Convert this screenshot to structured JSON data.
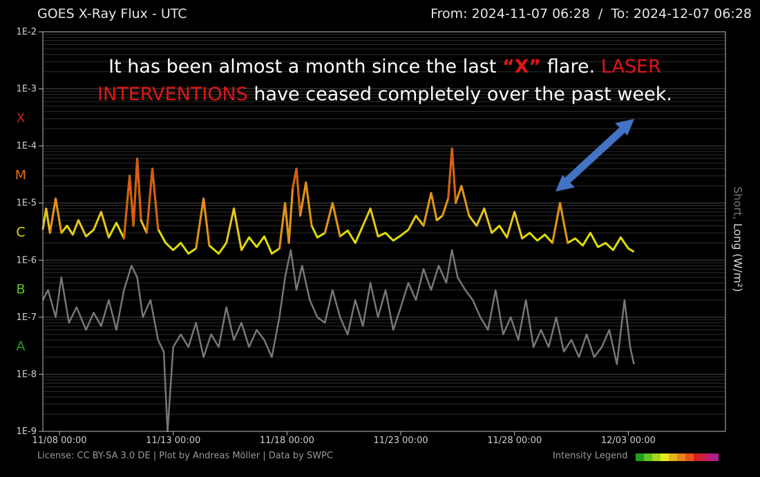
{
  "header": {
    "title": "GOES X-Ray Flux - UTC",
    "from_label": "From:",
    "from_value": "2024-11-07 06:28",
    "separator": "/",
    "to_label": "To:",
    "to_value": "2024-12-07 06:28"
  },
  "annotation": {
    "line1_a": "It has been almost a month since the last ",
    "line1_x": "“X”",
    "line1_b": " flare.  ",
    "line1_c": "LASER",
    "line2_a": "INTERVENTIONS",
    "line2_b": " have ceased completely over the past week."
  },
  "ylabel": {
    "short": "Short,",
    "long": "Long (W/m²)"
  },
  "footer": {
    "license": "License: CC BY-SA 3.0 DE | Plot by Andreas Möller | Data by SWPC",
    "legend_label": "Intensity Legend",
    "legend_colors": [
      "#1fa01f",
      "#5cc51f",
      "#a4d81e",
      "#e8e81c",
      "#e8b21c",
      "#e8821c",
      "#e8521c",
      "#d81e1e",
      "#c41e5a",
      "#b01e8a"
    ]
  },
  "colors": {
    "background": "#000000",
    "grid": "#3a3a3a",
    "frame": "#bdbdbd",
    "long_series_base": "#dede00",
    "short_series": "#777777",
    "annotation_red": "#e11515",
    "arrow": "#4472c4"
  },
  "chart_data": {
    "type": "line",
    "title": "GOES X-Ray Flux - UTC",
    "x_range": [
      "2024-11-07 06:28",
      "2024-12-07 06:28"
    ],
    "x_tick_labels": [
      "11/08 00:00",
      "11/13 00:00",
      "11/18 00:00",
      "11/23 00:00",
      "11/28 00:00",
      "12/03 00:00"
    ],
    "x_tick_dates": [
      "2024-11-08 00:00",
      "2024-11-13 00:00",
      "2024-11-18 00:00",
      "2024-11-23 00:00",
      "2024-11-28 00:00",
      "2024-12-03 00:00"
    ],
    "y_scale": "log",
    "ylim": [
      1e-09,
      0.01
    ],
    "y_tick_labels": [
      "1E-2",
      "1E-3",
      "1E-4",
      "1E-5",
      "1E-6",
      "1E-7",
      "1E-8",
      "1E-9"
    ],
    "y_tick_values": [
      0.01,
      0.001,
      0.0001,
      1e-05,
      1e-06,
      1e-07,
      1e-08,
      1e-09
    ],
    "ylabel": "Short, Long (W/m²)",
    "flare_classes": [
      {
        "label": "X",
        "color": "#c81e1e",
        "y": 0.000316
      },
      {
        "label": "M",
        "color": "#e07018",
        "y": 3.16e-05
      },
      {
        "label": "C",
        "color": "#dede00",
        "y": 3.16e-06
      },
      {
        "label": "B",
        "color": "#5cc51f",
        "y": 3.16e-07
      },
      {
        "label": "A",
        "color": "#1fa01f",
        "y": 3.16e-08
      }
    ],
    "grid": true,
    "series": [
      {
        "name": "Long",
        "color": "#dede00",
        "points": [
          [
            "2024-11-07 06:28",
            3.5e-06
          ],
          [
            "2024-11-07 10:00",
            8e-06
          ],
          [
            "2024-11-07 14:00",
            3e-06
          ],
          [
            "2024-11-07 20:00",
            1.2e-05
          ],
          [
            "2024-11-08 02:00",
            3e-06
          ],
          [
            "2024-11-08 08:00",
            4e-06
          ],
          [
            "2024-11-08 14:00",
            2.8e-06
          ],
          [
            "2024-11-08 20:00",
            5e-06
          ],
          [
            "2024-11-09 04:00",
            2.6e-06
          ],
          [
            "2024-11-09 12:00",
            3.4e-06
          ],
          [
            "2024-11-09 20:00",
            7e-06
          ],
          [
            "2024-11-10 04:00",
            2.5e-06
          ],
          [
            "2024-11-10 12:00",
            4.5e-06
          ],
          [
            "2024-11-10 20:00",
            2.4e-06
          ],
          [
            "2024-11-11 02:00",
            3e-05
          ],
          [
            "2024-11-11 06:00",
            4e-06
          ],
          [
            "2024-11-11 10:00",
            6e-05
          ],
          [
            "2024-11-11 14:00",
            5e-06
          ],
          [
            "2024-11-11 20:00",
            3e-06
          ],
          [
            "2024-11-12 02:00",
            4e-05
          ],
          [
            "2024-11-12 08:00",
            3.5e-06
          ],
          [
            "2024-11-12 16:00",
            2e-06
          ],
          [
            "2024-11-13 00:00",
            1.5e-06
          ],
          [
            "2024-11-13 08:00",
            2e-06
          ],
          [
            "2024-11-13 16:00",
            1.3e-06
          ],
          [
            "2024-11-14 00:00",
            1.6e-06
          ],
          [
            "2024-11-14 08:00",
            1.2e-05
          ],
          [
            "2024-11-14 14:00",
            1.8e-06
          ],
          [
            "2024-11-15 00:00",
            1.3e-06
          ],
          [
            "2024-11-15 08:00",
            2e-06
          ],
          [
            "2024-11-15 16:00",
            8e-06
          ],
          [
            "2024-11-16 00:00",
            1.5e-06
          ],
          [
            "2024-11-16 08:00",
            2.5e-06
          ],
          [
            "2024-11-16 16:00",
            1.7e-06
          ],
          [
            "2024-11-17 00:00",
            2.6e-06
          ],
          [
            "2024-11-17 08:00",
            1.3e-06
          ],
          [
            "2024-11-17 16:00",
            1.6e-06
          ],
          [
            "2024-11-17 22:00",
            1e-05
          ],
          [
            "2024-11-18 02:00",
            2e-06
          ],
          [
            "2024-11-18 06:00",
            1.8e-05
          ],
          [
            "2024-11-18 10:00",
            4e-05
          ],
          [
            "2024-11-18 14:00",
            6e-06
          ],
          [
            "2024-11-18 20:00",
            2.3e-05
          ],
          [
            "2024-11-19 02:00",
            4e-06
          ],
          [
            "2024-11-19 08:00",
            2.5e-06
          ],
          [
            "2024-11-19 16:00",
            3e-06
          ],
          [
            "2024-11-20 00:00",
            1e-05
          ],
          [
            "2024-11-20 08:00",
            2.6e-06
          ],
          [
            "2024-11-20 16:00",
            3.3e-06
          ],
          [
            "2024-11-21 00:00",
            2e-06
          ],
          [
            "2024-11-21 08:00",
            4e-06
          ],
          [
            "2024-11-21 16:00",
            8e-06
          ],
          [
            "2024-11-22 00:00",
            2.6e-06
          ],
          [
            "2024-11-22 08:00",
            3e-06
          ],
          [
            "2024-11-22 16:00",
            2.2e-06
          ],
          [
            "2024-11-23 00:00",
            2.7e-06
          ],
          [
            "2024-11-23 08:00",
            3.4e-06
          ],
          [
            "2024-11-23 16:00",
            6e-06
          ],
          [
            "2024-11-24 00:00",
            4e-06
          ],
          [
            "2024-11-24 08:00",
            1.5e-05
          ],
          [
            "2024-11-24 14:00",
            5e-06
          ],
          [
            "2024-11-24 20:00",
            6e-06
          ],
          [
            "2024-11-25 02:00",
            1.2e-05
          ],
          [
            "2024-11-25 06:00",
            9e-05
          ],
          [
            "2024-11-25 10:00",
            1e-05
          ],
          [
            "2024-11-25 16:00",
            2e-05
          ],
          [
            "2024-11-26 00:00",
            6e-06
          ],
          [
            "2024-11-26 08:00",
            4e-06
          ],
          [
            "2024-11-26 16:00",
            8e-06
          ],
          [
            "2024-11-27 00:00",
            3e-06
          ],
          [
            "2024-11-27 08:00",
            4e-06
          ],
          [
            "2024-11-27 16:00",
            2.5e-06
          ],
          [
            "2024-11-28 00:00",
            7e-06
          ],
          [
            "2024-11-28 08:00",
            2.4e-06
          ],
          [
            "2024-11-28 16:00",
            3e-06
          ],
          [
            "2024-11-29 00:00",
            2.2e-06
          ],
          [
            "2024-11-29 08:00",
            2.8e-06
          ],
          [
            "2024-11-29 16:00",
            2e-06
          ],
          [
            "2024-11-30 00:00",
            1e-05
          ],
          [
            "2024-11-30 08:00",
            2e-06
          ],
          [
            "2024-11-30 16:00",
            2.4e-06
          ],
          [
            "2024-12-01 00:00",
            1.8e-06
          ],
          [
            "2024-12-01 08:00",
            3e-06
          ],
          [
            "2024-12-01 16:00",
            1.7e-06
          ],
          [
            "2024-12-02 00:00",
            2e-06
          ],
          [
            "2024-12-02 08:00",
            1.5e-06
          ],
          [
            "2024-12-02 16:00",
            2.5e-06
          ],
          [
            "2024-12-03 00:00",
            1.6e-06
          ],
          [
            "2024-12-03 06:00",
            1.4e-06
          ]
        ]
      },
      {
        "name": "Short",
        "color": "#777777",
        "points": [
          [
            "2024-11-07 06:28",
            2e-07
          ],
          [
            "2024-11-07 12:00",
            3e-07
          ],
          [
            "2024-11-07 20:00",
            1e-07
          ],
          [
            "2024-11-08 02:00",
            5e-07
          ],
          [
            "2024-11-08 10:00",
            8e-08
          ],
          [
            "2024-11-08 18:00",
            1.5e-07
          ],
          [
            "2024-11-09 04:00",
            6e-08
          ],
          [
            "2024-11-09 12:00",
            1.2e-07
          ],
          [
            "2024-11-09 20:00",
            7e-08
          ],
          [
            "2024-11-10 04:00",
            2e-07
          ],
          [
            "2024-11-10 12:00",
            6e-08
          ],
          [
            "2024-11-10 20:00",
            3e-07
          ],
          [
            "2024-11-11 04:00",
            8e-07
          ],
          [
            "2024-11-11 10:00",
            5e-07
          ],
          [
            "2024-11-11 16:00",
            1e-07
          ],
          [
            "2024-11-12 00:00",
            2e-07
          ],
          [
            "2024-11-12 08:00",
            4e-08
          ],
          [
            "2024-11-12 14:00",
            2.5e-08
          ],
          [
            "2024-11-12 18:00",
            1e-09
          ],
          [
            "2024-11-13 00:00",
            3e-08
          ],
          [
            "2024-11-13 08:00",
            5e-08
          ],
          [
            "2024-11-13 16:00",
            3e-08
          ],
          [
            "2024-11-14 00:00",
            8e-08
          ],
          [
            "2024-11-14 08:00",
            2e-08
          ],
          [
            "2024-11-14 16:00",
            5e-08
          ],
          [
            "2024-11-15 00:00",
            3e-08
          ],
          [
            "2024-11-15 08:00",
            1.5e-07
          ],
          [
            "2024-11-15 16:00",
            4e-08
          ],
          [
            "2024-11-16 00:00",
            8e-08
          ],
          [
            "2024-11-16 08:00",
            3e-08
          ],
          [
            "2024-11-16 16:00",
            6e-08
          ],
          [
            "2024-11-17 00:00",
            4e-08
          ],
          [
            "2024-11-17 08:00",
            2e-08
          ],
          [
            "2024-11-17 16:00",
            1e-07
          ],
          [
            "2024-11-17 22:00",
            5e-07
          ],
          [
            "2024-11-18 04:00",
            1.5e-06
          ],
          [
            "2024-11-18 10:00",
            3e-07
          ],
          [
            "2024-11-18 16:00",
            8e-07
          ],
          [
            "2024-11-19 00:00",
            2e-07
          ],
          [
            "2024-11-19 08:00",
            1e-07
          ],
          [
            "2024-11-19 16:00",
            8e-08
          ],
          [
            "2024-11-20 00:00",
            3e-07
          ],
          [
            "2024-11-20 08:00",
            1e-07
          ],
          [
            "2024-11-20 16:00",
            5e-08
          ],
          [
            "2024-11-21 00:00",
            2e-07
          ],
          [
            "2024-11-21 08:00",
            7e-08
          ],
          [
            "2024-11-21 16:00",
            4e-07
          ],
          [
            "2024-11-22 00:00",
            1e-07
          ],
          [
            "2024-11-22 08:00",
            3e-07
          ],
          [
            "2024-11-22 16:00",
            6e-08
          ],
          [
            "2024-11-23 00:00",
            1.5e-07
          ],
          [
            "2024-11-23 08:00",
            4e-07
          ],
          [
            "2024-11-23 16:00",
            2e-07
          ],
          [
            "2024-11-24 00:00",
            7e-07
          ],
          [
            "2024-11-24 08:00",
            3e-07
          ],
          [
            "2024-11-24 16:00",
            8e-07
          ],
          [
            "2024-11-25 00:00",
            4e-07
          ],
          [
            "2024-11-25 06:00",
            1.5e-06
          ],
          [
            "2024-11-25 12:00",
            5e-07
          ],
          [
            "2024-11-25 20:00",
            3e-07
          ],
          [
            "2024-11-26 04:00",
            2e-07
          ],
          [
            "2024-11-26 12:00",
            1e-07
          ],
          [
            "2024-11-26 20:00",
            6e-08
          ],
          [
            "2024-11-27 04:00",
            3e-07
          ],
          [
            "2024-11-27 12:00",
            5e-08
          ],
          [
            "2024-11-27 20:00",
            1e-07
          ],
          [
            "2024-11-28 04:00",
            4e-08
          ],
          [
            "2024-11-28 12:00",
            2e-07
          ],
          [
            "2024-11-28 20:00",
            3e-08
          ],
          [
            "2024-11-29 04:00",
            6e-08
          ],
          [
            "2024-11-29 12:00",
            3e-08
          ],
          [
            "2024-11-29 20:00",
            1e-07
          ],
          [
            "2024-11-30 04:00",
            2.5e-08
          ],
          [
            "2024-11-30 12:00",
            4e-08
          ],
          [
            "2024-11-30 20:00",
            2e-08
          ],
          [
            "2024-12-01 04:00",
            5e-08
          ],
          [
            "2024-12-01 12:00",
            2e-08
          ],
          [
            "2024-12-01 20:00",
            3e-08
          ],
          [
            "2024-12-02 04:00",
            6e-08
          ],
          [
            "2024-12-02 12:00",
            1.5e-08
          ],
          [
            "2024-12-02 20:00",
            2e-07
          ],
          [
            "2024-12-03 02:00",
            3e-08
          ],
          [
            "2024-12-03 06:00",
            1.5e-08
          ]
        ]
      }
    ]
  }
}
